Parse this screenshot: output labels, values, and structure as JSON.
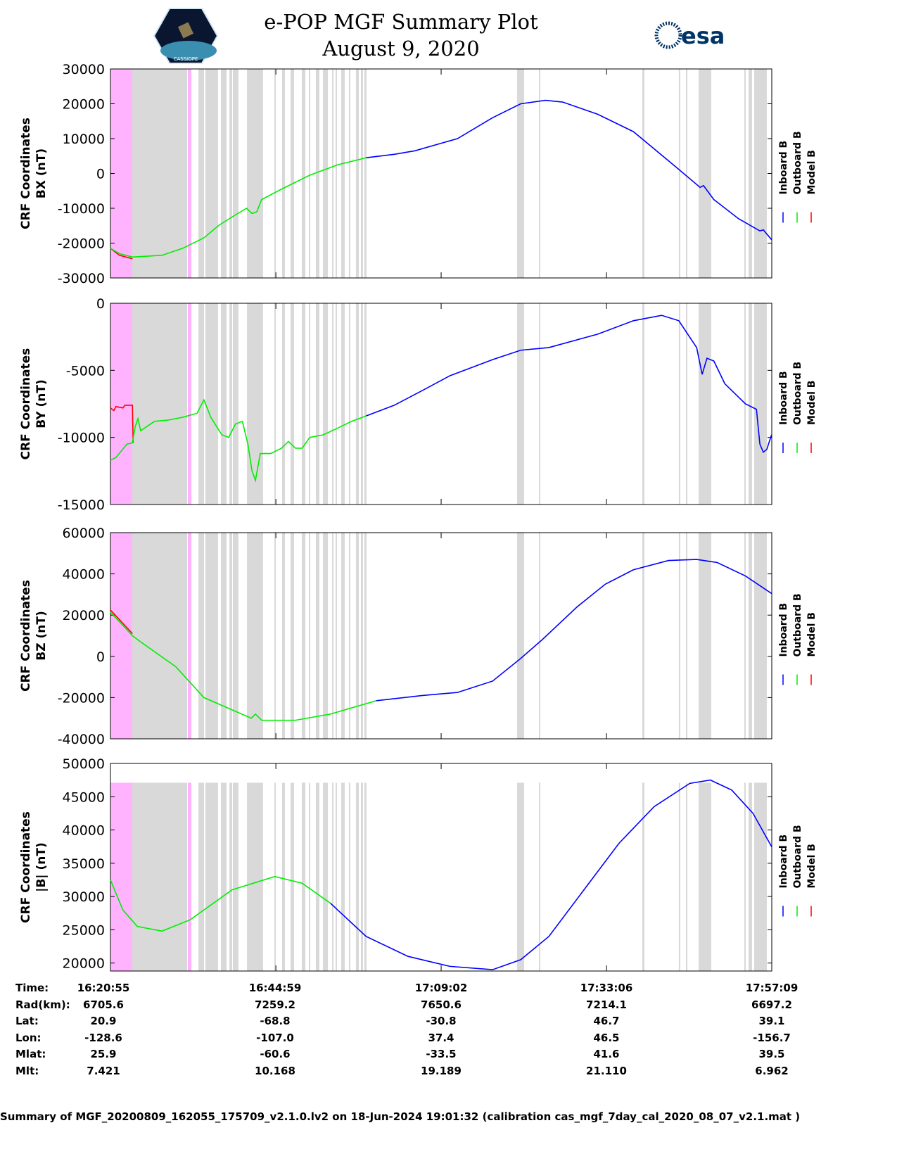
{
  "header": {
    "title": "e-POP MGF Summary Plot",
    "date": "August 9, 2020",
    "logo_left": "CASSIOPE",
    "logo_right": "esa"
  },
  "colors": {
    "inboard": "#0000ff",
    "outboard": "#00ee00",
    "model": "#ff0000",
    "gray_band": "#d9d9d9",
    "magenta_band": "#ffb3ff"
  },
  "chart_data": [
    {
      "type": "line",
      "ylabel": [
        "CRF Coordinates",
        "BX (nT)"
      ],
      "ylim": [
        -30000,
        30000
      ],
      "yticks": [
        -30000,
        -20000,
        -10000,
        0,
        10000,
        20000,
        30000
      ],
      "legend": [
        "Inboard B",
        "Outboard B",
        "Model B"
      ],
      "outboard": [
        [
          0,
          -21500
        ],
        [
          1.3,
          -23000
        ],
        [
          3.2,
          -24000
        ],
        [
          7.5,
          -23500
        ],
        [
          10.5,
          -21500
        ],
        [
          13.6,
          -18500
        ],
        [
          15.7,
          -15000
        ],
        [
          17.7,
          -12500
        ],
        [
          19.8,
          -10000
        ],
        [
          20.6,
          -11500
        ],
        [
          21.3,
          -11000
        ],
        [
          22.0,
          -7500
        ],
        [
          24.9,
          -4500
        ],
        [
          29.0,
          -500
        ],
        [
          33.1,
          2500
        ],
        [
          37.2,
          4500
        ]
      ],
      "inboard": [
        [
          37.2,
          4500
        ],
        [
          41.3,
          5500
        ],
        [
          44.3,
          6500
        ],
        [
          50.5,
          10000
        ],
        [
          55.6,
          16000
        ],
        [
          59.7,
          20000
        ],
        [
          63.3,
          21000
        ],
        [
          65.8,
          20500
        ],
        [
          70.9,
          17000
        ],
        [
          76.1,
          12000
        ],
        [
          82.2,
          2000
        ],
        [
          85.8,
          -4000
        ],
        [
          86.3,
          -3500
        ],
        [
          87.8,
          -7500
        ],
        [
          91.4,
          -13000
        ],
        [
          94.5,
          -16500
        ],
        [
          95.0,
          -16200
        ],
        [
          96.2,
          -19000
        ]
      ],
      "model": [
        [
          0,
          -21500
        ],
        [
          1.3,
          -23500
        ],
        [
          3.2,
          -24500
        ]
      ]
    },
    {
      "type": "line",
      "ylabel": [
        "CRF Coordinates",
        "BY (nT)"
      ],
      "ylim": [
        -15000,
        0
      ],
      "yticks": [
        -15000,
        -10000,
        -5000,
        0
      ],
      "legend": [
        "Inboard B",
        "Outboard B",
        "Model B"
      ],
      "outboard": [
        [
          0,
          -11700
        ],
        [
          0.8,
          -11500
        ],
        [
          2.4,
          -10500
        ],
        [
          3.2,
          -10400
        ],
        [
          3.6,
          -9200
        ],
        [
          4.0,
          -8600
        ],
        [
          4.4,
          -9500
        ],
        [
          6.4,
          -8800
        ],
        [
          8.5,
          -8700
        ],
        [
          10.5,
          -8500
        ],
        [
          12.6,
          -8200
        ],
        [
          13.6,
          -7200
        ],
        [
          14.6,
          -8500
        ],
        [
          16.2,
          -9800
        ],
        [
          17.2,
          -10000
        ],
        [
          18.2,
          -9000
        ],
        [
          19.2,
          -8800
        ],
        [
          20.0,
          -10500
        ],
        [
          20.6,
          -12500
        ],
        [
          21.1,
          -13200
        ],
        [
          21.8,
          -11200
        ],
        [
          23.3,
          -11200
        ],
        [
          24.9,
          -10800
        ],
        [
          25.9,
          -10300
        ],
        [
          26.9,
          -10800
        ],
        [
          27.9,
          -10800
        ],
        [
          29.0,
          -10000
        ],
        [
          31.0,
          -9800
        ],
        [
          33.1,
          -9300
        ],
        [
          35.1,
          -8800
        ],
        [
          37.2,
          -8400
        ]
      ],
      "inboard": [
        [
          37.2,
          -8400
        ],
        [
          41.3,
          -7600
        ],
        [
          45.4,
          -6500
        ],
        [
          49.4,
          -5400
        ],
        [
          55.6,
          -4200
        ],
        [
          59.7,
          -3500
        ],
        [
          63.8,
          -3300
        ],
        [
          70.9,
          -2300
        ],
        [
          76.1,
          -1300
        ],
        [
          80.2,
          -900
        ],
        [
          82.7,
          -1300
        ],
        [
          85.3,
          -3300
        ],
        [
          86.1,
          -5300
        ],
        [
          86.8,
          -4100
        ],
        [
          87.8,
          -4300
        ],
        [
          89.4,
          -6000
        ],
        [
          92.4,
          -7500
        ],
        [
          94.0,
          -7900
        ],
        [
          94.5,
          -10500
        ],
        [
          95.0,
          -11100
        ],
        [
          95.5,
          -10900
        ],
        [
          96.2,
          -9800
        ]
      ],
      "model": [
        [
          0,
          -7800
        ],
        [
          0.5,
          -8000
        ],
        [
          0.8,
          -7700
        ],
        [
          1.8,
          -7800
        ],
        [
          2.1,
          -7600
        ],
        [
          3.2,
          -7600
        ],
        [
          3.3,
          -10400
        ]
      ]
    },
    {
      "type": "line",
      "ylabel": [
        "CRF Coordinates",
        "BZ (nT)"
      ],
      "ylim": [
        -40000,
        60000
      ],
      "yticks": [
        -40000,
        -20000,
        0,
        20000,
        40000,
        60000
      ],
      "legend": [
        "Inboard B",
        "Outboard B",
        "Model B"
      ],
      "outboard": [
        [
          0,
          21500
        ],
        [
          3.2,
          10000
        ],
        [
          4.4,
          7000
        ],
        [
          9.5,
          -5000
        ],
        [
          13.6,
          -20000
        ],
        [
          19.8,
          -29000
        ],
        [
          20.5,
          -30000
        ],
        [
          21.1,
          -28000
        ],
        [
          22.0,
          -31000
        ],
        [
          26.9,
          -31000
        ],
        [
          32.0,
          -28000
        ],
        [
          38.7,
          -21500
        ]
      ],
      "inboard": [
        [
          38.7,
          -21500
        ],
        [
          45.4,
          -19000
        ],
        [
          50.5,
          -17500
        ],
        [
          55.6,
          -12000
        ],
        [
          59.7,
          -1000
        ],
        [
          62.8,
          8000
        ],
        [
          67.9,
          24000
        ],
        [
          72.0,
          35000
        ],
        [
          76.1,
          42000
        ],
        [
          81.2,
          46500
        ],
        [
          85.3,
          47000
        ],
        [
          88.3,
          45500
        ],
        [
          92.4,
          39000
        ],
        [
          96.2,
          30500
        ]
      ],
      "model": [
        [
          0,
          22500
        ],
        [
          3.2,
          11000
        ]
      ]
    },
    {
      "type": "line",
      "ylabel": [
        "CRF Coordinates",
        "|B| (nT)"
      ],
      "ylim": [
        18800,
        50000
      ],
      "yticks": [
        20000,
        25000,
        30000,
        35000,
        40000,
        45000,
        50000
      ],
      "legend": [
        "Inboard B",
        "Outboard B",
        "Model B"
      ],
      "band_top": 47100,
      "outboard": [
        [
          0,
          32500
        ],
        [
          1.8,
          28000
        ],
        [
          3.9,
          25500
        ],
        [
          7.5,
          24800
        ],
        [
          11.6,
          26500
        ],
        [
          17.7,
          31000
        ],
        [
          23.9,
          33000
        ],
        [
          27.9,
          32000
        ],
        [
          32.0,
          29000
        ]
      ],
      "inboard": [
        [
          32.0,
          29000
        ],
        [
          37.2,
          24000
        ],
        [
          43.3,
          21000
        ],
        [
          49.4,
          19500
        ],
        [
          55.6,
          19000
        ],
        [
          59.7,
          20500
        ],
        [
          63.8,
          24000
        ],
        [
          68.9,
          31000
        ],
        [
          74.0,
          38000
        ],
        [
          79.1,
          43500
        ],
        [
          84.3,
          47000
        ],
        [
          87.3,
          47500
        ],
        [
          90.4,
          46000
        ],
        [
          93.5,
          42500
        ],
        [
          96.2,
          37500
        ]
      ],
      "model": []
    }
  ],
  "x_axis": {
    "xlim": [
      0,
      96.23
    ],
    "unit": "minutes since 16:20:55",
    "tick_positions": [
      0,
      24.07,
      48.12,
      72.18,
      96.23
    ]
  },
  "bands": {
    "magenta": [
      [
        0,
        3.17
      ],
      [
        11.26,
        11.77
      ]
    ],
    "gray": [
      [
        3.17,
        11.16
      ],
      [
        12.8,
        13.62
      ],
      [
        13.82,
        15.66
      ],
      [
        16.07,
        16.89
      ],
      [
        17.3,
        17.71
      ],
      [
        17.81,
        18.63
      ],
      [
        19.86,
        22.21
      ],
      [
        23.85,
        24.06
      ],
      [
        24.98,
        25.39
      ],
      [
        26.21,
        26.72
      ],
      [
        27.84,
        28.36
      ],
      [
        28.87,
        29.07
      ],
      [
        29.89,
        30.4
      ],
      [
        30.92,
        31.63
      ],
      [
        32.25,
        32.45
      ],
      [
        32.76,
        32.96
      ],
      [
        33.58,
        34.09
      ],
      [
        34.7,
        34.91
      ],
      [
        35.72,
        36.14
      ],
      [
        36.44,
        36.75
      ],
      [
        36.95,
        37.26
      ],
      [
        59.17,
        60.19
      ],
      [
        62.34,
        62.54
      ],
      [
        77.39,
        77.7
      ],
      [
        82.71,
        82.92
      ],
      [
        83.74,
        83.94
      ],
      [
        85.58,
        87.42
      ],
      [
        92.23,
        92.44
      ],
      [
        92.85,
        93.36
      ],
      [
        93.67,
        95.51
      ]
    ]
  },
  "table": {
    "rows": [
      {
        "label": "Time:",
        "values": [
          "16:20:55",
          "16:44:59",
          "17:09:02",
          "17:33:06",
          "17:57:09"
        ]
      },
      {
        "label": "Rad(km):",
        "values": [
          "6705.6",
          "7259.2",
          "7650.6",
          "7214.1",
          "6697.2"
        ]
      },
      {
        "label": "Lat:",
        "values": [
          "20.9",
          "-68.8",
          "-30.8",
          "46.7",
          "39.1"
        ]
      },
      {
        "label": "Lon:",
        "values": [
          "-128.6",
          "-107.0",
          "37.4",
          "46.5",
          "-156.7"
        ]
      },
      {
        "label": "Mlat:",
        "values": [
          "25.9",
          "-60.6",
          "-33.5",
          "41.6",
          "39.5"
        ]
      },
      {
        "label": "Mlt:",
        "values": [
          "7.421",
          "10.168",
          "19.189",
          "21.110",
          "6.962"
        ]
      }
    ]
  },
  "footer": "Summary of MGF_20200809_162055_175709_v2.1.0.lv2 on 18-Jun-2024 19:01:32 (calibration cas_mgf_7day_cal_2020_08_07_v2.1.mat )"
}
